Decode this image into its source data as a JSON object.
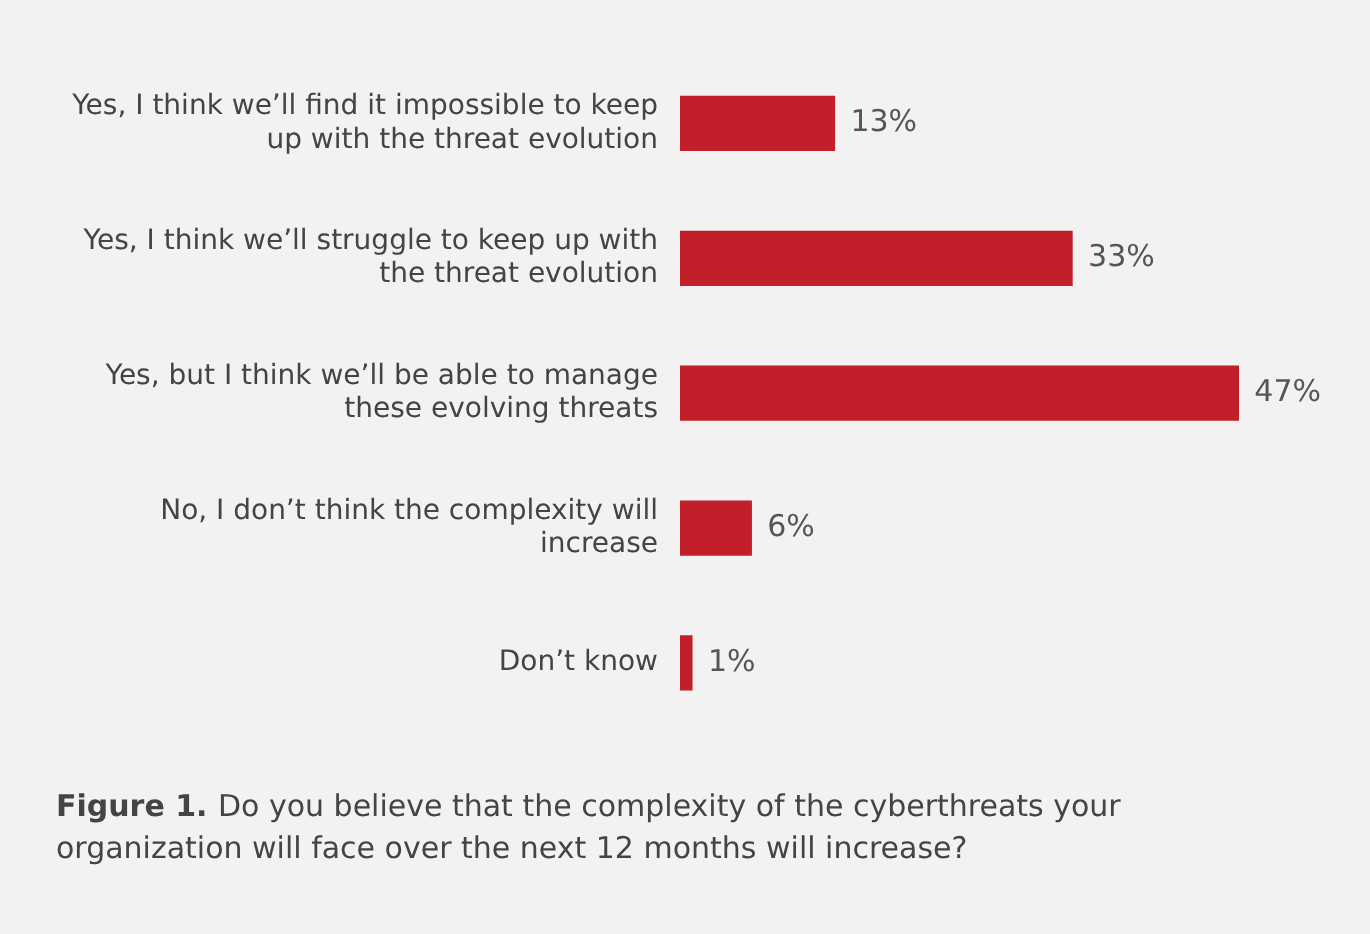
{
  "chart_data": {
    "type": "bar",
    "orientation": "horizontal",
    "categories": [
      "Yes, I think we’ll find it impossible to keep up with the threat evolution",
      "Yes, I think we’ll struggle to keep up with the threat evolution",
      "Yes, but I think we’ll be able to manage these evolving threats",
      "No, I don’t think the complexity will increase",
      "Don’t know"
    ],
    "values": [
      13,
      33,
      47,
      6,
      1
    ],
    "value_labels": [
      "13%",
      "33%",
      "47%",
      "6%",
      "1%"
    ],
    "color": "#c21f2a",
    "legend": false,
    "annotations": [
      "Figure 1.",
      "Do you believe that the complexity of the cyberthreats your organization will face over the next 12 months will increase?"
    ]
  }
}
